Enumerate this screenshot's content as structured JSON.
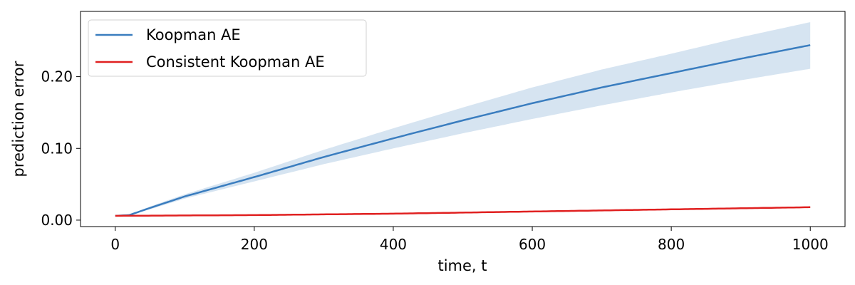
{
  "chart_data": {
    "type": "line",
    "title": "",
    "xlabel": "time, t",
    "ylabel": "prediction error",
    "xlim": [
      -50,
      1050
    ],
    "ylim": [
      -0.009,
      0.291
    ],
    "xticks": [
      0,
      200,
      400,
      600,
      800,
      1000
    ],
    "xtick_labels": [
      "0",
      "200",
      "400",
      "600",
      "800",
      "1000"
    ],
    "yticks": [
      0.0,
      0.1,
      0.2
    ],
    "ytick_labels": [
      "0.00",
      "0.10",
      "0.20"
    ],
    "grid": false,
    "legend_position": "top-left",
    "series": [
      {
        "name": "Koopman AE",
        "color": "#3a7dbf",
        "band_color": "#d6e4f1",
        "x": [
          0,
          20,
          50,
          100,
          200,
          300,
          400,
          500,
          600,
          700,
          800,
          900,
          1000
        ],
        "y": [
          0.006,
          0.007,
          0.017,
          0.033,
          0.06,
          0.088,
          0.114,
          0.139,
          0.163,
          0.185,
          0.205,
          0.225,
          0.244
        ],
        "lower": [
          0.006,
          0.007,
          0.015,
          0.03,
          0.054,
          0.078,
          0.1,
          0.121,
          0.141,
          0.16,
          0.178,
          0.195,
          0.211
        ],
        "upper": [
          0.006,
          0.007,
          0.019,
          0.036,
          0.066,
          0.098,
          0.128,
          0.157,
          0.185,
          0.21,
          0.232,
          0.255,
          0.276
        ]
      },
      {
        "name": "Consistent Koopman AE",
        "color": "#e02020",
        "x": [
          0,
          200,
          400,
          600,
          800,
          1000
        ],
        "y": [
          0.006,
          0.007,
          0.009,
          0.012,
          0.015,
          0.018
        ],
        "lower": [
          0.006,
          0.006,
          0.008,
          0.011,
          0.014,
          0.017
        ],
        "upper": [
          0.006,
          0.008,
          0.01,
          0.013,
          0.016,
          0.019
        ]
      }
    ]
  }
}
